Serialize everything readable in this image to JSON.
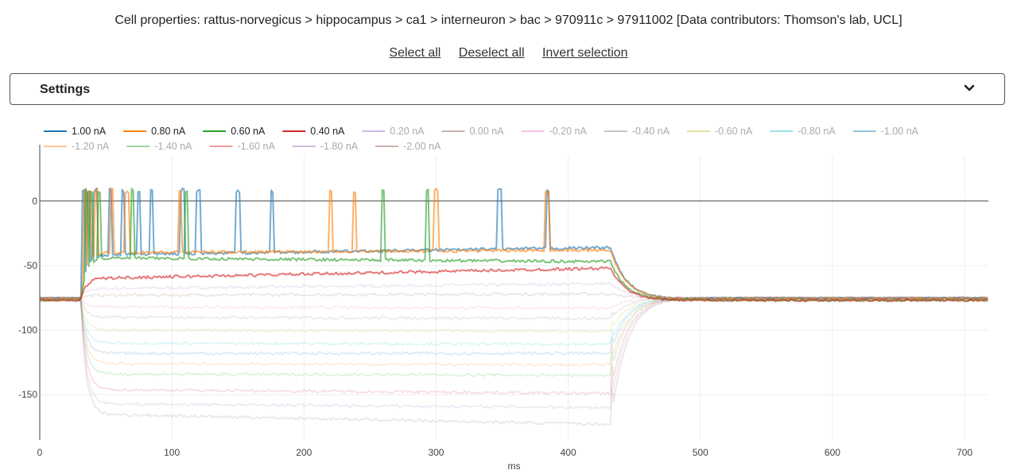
{
  "header": {
    "title": "Cell properties: rattus-norvegicus > hippocampus > ca1 > interneuron > bac > 970911c > 97911002 [Data contributors: Thomson's lab, UCL]"
  },
  "links": {
    "select_all": "Select all",
    "deselect_all": "Deselect all",
    "invert_selection": "Invert selection"
  },
  "settings": {
    "label": "Settings",
    "icon": "chevron-down-icon"
  },
  "chart_data": {
    "type": "line",
    "xlabel": "ms",
    "ylabel": "",
    "xlim": [
      0,
      718
    ],
    "ylim": [
      -185,
      35
    ],
    "x_ticks": [
      0,
      100,
      200,
      300,
      400,
      500,
      600,
      700
    ],
    "y_ticks": [
      0,
      -50,
      -100,
      -150
    ],
    "grid": true,
    "legend_position": "top",
    "stimulus_window_ms": [
      31,
      432
    ],
    "series": [
      {
        "name": "1.00 nA",
        "color": "#1f77b4",
        "visible": true,
        "rest": -76,
        "plateau_start": -42,
        "plateau_end": -36,
        "spike_times": [
          33,
          37,
          42,
          53,
          63,
          75,
          85,
          108,
          120,
          150,
          176,
          348,
          385
        ]
      },
      {
        "name": "0.80 nA",
        "color": "#ff7f0e",
        "visible": true,
        "rest": -76,
        "plateau_start": -40,
        "plateau_end": -38,
        "spike_times": [
          34,
          38,
          43,
          55,
          66,
          106,
          220,
          238,
          300,
          384
        ]
      },
      {
        "name": "0.60 nA",
        "color": "#2ca02c",
        "visible": true,
        "rest": -77,
        "plateau_start": -44,
        "plateau_end": -47,
        "spike_times": [
          35,
          39,
          45,
          70,
          111,
          260,
          293
        ]
      },
      {
        "name": "0.40 nA",
        "color": "#d62728",
        "visible": true,
        "rest": -77,
        "plateau_start": -60,
        "plateau_end": -52,
        "spike_times": []
      },
      {
        "name": "0.20 nA",
        "color": "#9467bd",
        "visible": false,
        "rest": -75,
        "plateau_start": -68,
        "plateau_end": -64,
        "spike_times": []
      },
      {
        "name": "0.00 nA",
        "color": "#8c564b",
        "visible": false,
        "rest": -75,
        "plateau_start": -73,
        "plateau_end": -72,
        "spike_times": []
      },
      {
        "name": "-0.20 nA",
        "color": "#e377c2",
        "visible": false,
        "rest": -75,
        "plateau_start": -82,
        "plateau_end": -83,
        "spike_times": []
      },
      {
        "name": "-0.40 nA",
        "color": "#7f7f7f",
        "visible": false,
        "rest": -75,
        "plateau_start": -90,
        "plateau_end": -91,
        "spike_times": []
      },
      {
        "name": "-0.60 nA",
        "color": "#bcbd22",
        "visible": false,
        "rest": -75,
        "plateau_start": -100,
        "plateau_end": -101,
        "spike_times": []
      },
      {
        "name": "-0.80 nA",
        "color": "#17becf",
        "visible": false,
        "rest": -75,
        "plateau_start": -110,
        "plateau_end": -111,
        "spike_times": []
      },
      {
        "name": "-1.00 nA",
        "color": "#1f77b4",
        "visible": false,
        "rest": -75,
        "plateau_start": -118,
        "plateau_end": -118,
        "spike_times": []
      },
      {
        "name": "-1.20 nA",
        "color": "#ff7f0e",
        "visible": false,
        "rest": -75,
        "plateau_start": -126,
        "plateau_end": -127,
        "spike_times": []
      },
      {
        "name": "-1.40 nA",
        "color": "#2ca02c",
        "visible": false,
        "rest": -75,
        "plateau_start": -134,
        "plateau_end": -135,
        "spike_times": []
      },
      {
        "name": "-1.60 nA",
        "color": "#d62728",
        "visible": false,
        "rest": -75,
        "plateau_start": -146,
        "plateau_end": -149,
        "spike_times": []
      },
      {
        "name": "-1.80 nA",
        "color": "#9467bd",
        "visible": false,
        "rest": -75,
        "plateau_start": -157,
        "plateau_end": -160,
        "spike_times": []
      },
      {
        "name": "-2.00 nA",
        "color": "#8c564b",
        "visible": false,
        "rest": -75,
        "plateau_start": -165,
        "plateau_end": -173,
        "spike_times": []
      }
    ]
  }
}
